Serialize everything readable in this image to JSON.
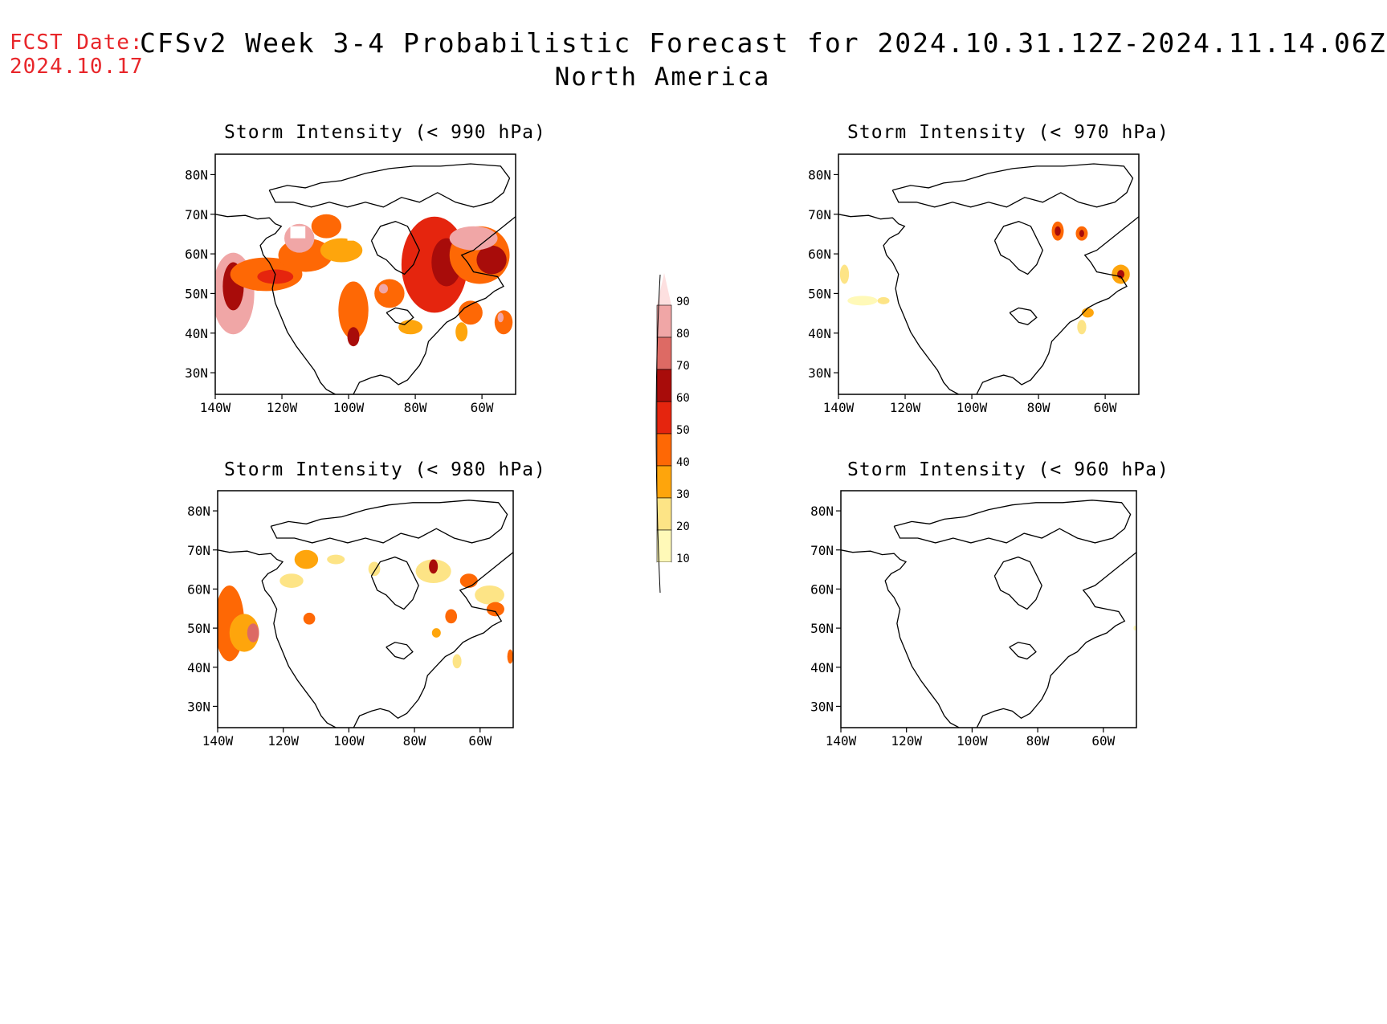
{
  "header": {
    "fcst_label": "FCST Date:",
    "fcst_date": "2024.10.17",
    "title": "CFSv2 Week 3-4 Probabilistic Forecast for 2024.10.31.12Z-2024.11.14.06Z",
    "subtitle": "North America"
  },
  "colors": {
    "levels": [
      "#fff9b8",
      "#fde486",
      "#fea50c",
      "#fe6805",
      "#e5250e",
      "#a80c0a",
      "#dd6a64",
      "#f0a6a6",
      "#fde0e0"
    ],
    "fcst_text": "#e8262a"
  },
  "colorbar": {
    "labels": [
      "10",
      "20",
      "30",
      "40",
      "50",
      "60",
      "70",
      "80",
      "90"
    ]
  },
  "panels": [
    {
      "id": "p990",
      "title": "Storm Intensity (< 990 hPa)",
      "lat_labels": [
        "80N",
        "70N",
        "60N",
        "50N",
        "40N",
        "30N"
      ],
      "lon_labels": [
        "140W",
        "120W",
        "100W",
        "80W",
        "60W"
      ]
    },
    {
      "id": "p970",
      "title": "Storm Intensity (< 970 hPa)",
      "lat_labels": [
        "80N",
        "70N",
        "60N",
        "50N",
        "40N",
        "30N"
      ],
      "lon_labels": [
        "140W",
        "120W",
        "100W",
        "80W",
        "60W"
      ]
    },
    {
      "id": "p980",
      "title": "Storm Intensity (< 980 hPa)",
      "lat_labels": [
        "80N",
        "70N",
        "60N",
        "50N",
        "40N",
        "30N"
      ],
      "lon_labels": [
        "140W",
        "120W",
        "100W",
        "80W",
        "60W"
      ]
    },
    {
      "id": "p960",
      "title": "Storm Intensity (< 960 hPa)",
      "lat_labels": [
        "80N",
        "70N",
        "60N",
        "50N",
        "40N",
        "30N"
      ],
      "lon_labels": [
        "140W",
        "120W",
        "100W",
        "80W",
        "60W"
      ]
    }
  ]
}
